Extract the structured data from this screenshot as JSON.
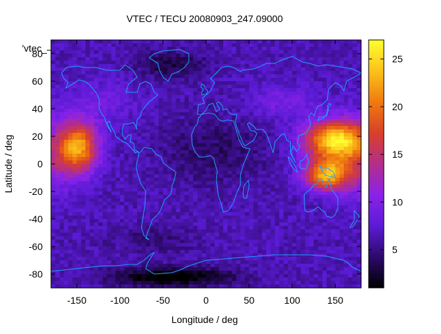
{
  "chart_data": {
    "type": "heatmap",
    "title": "VTEC / TECU 20080903_247.09000",
    "xlabel": "Longitude / deg",
    "ylabel": "Latitude / deg",
    "legend_label": "'vtec_",
    "xlim": [
      -180,
      180
    ],
    "ylim": [
      -90,
      90
    ],
    "x_ticks": [
      -150,
      -100,
      -50,
      0,
      50,
      100,
      150
    ],
    "y_ticks": [
      80,
      60,
      40,
      20,
      0,
      -20,
      -40,
      -60,
      -80
    ],
    "colorbar": {
      "range": [
        1,
        27
      ],
      "ticks": [
        5,
        10,
        15,
        20,
        25
      ],
      "palette": [
        "#000000",
        "#2d0a6b",
        "#5b1bd6",
        "#8a22e8",
        "#b42e8a",
        "#d8402a",
        "#f07a10",
        "#fbc21a",
        "#ffff30"
      ]
    },
    "grid_resolution": {
      "lon_step": 5,
      "lat_step": 2.5
    },
    "features": [
      {
        "name": "pacific-crest",
        "lon": -147,
        "lat": 12,
        "peak_vtec": 21
      },
      {
        "name": "asia-crest",
        "lon": 148,
        "lat": 17,
        "peak_vtec": 24
      },
      {
        "name": "asia-south-crest",
        "lon": 140,
        "lat": -8,
        "peak_vtec": 22
      },
      {
        "name": "antarctic-minimum",
        "lon": -40,
        "lat": -82,
        "min_vtec": 1
      },
      {
        "name": "arctic-minimum",
        "lon": -40,
        "lat": 72,
        "min_vtec": 3
      }
    ],
    "coastlines_color": "#1e9fff"
  }
}
